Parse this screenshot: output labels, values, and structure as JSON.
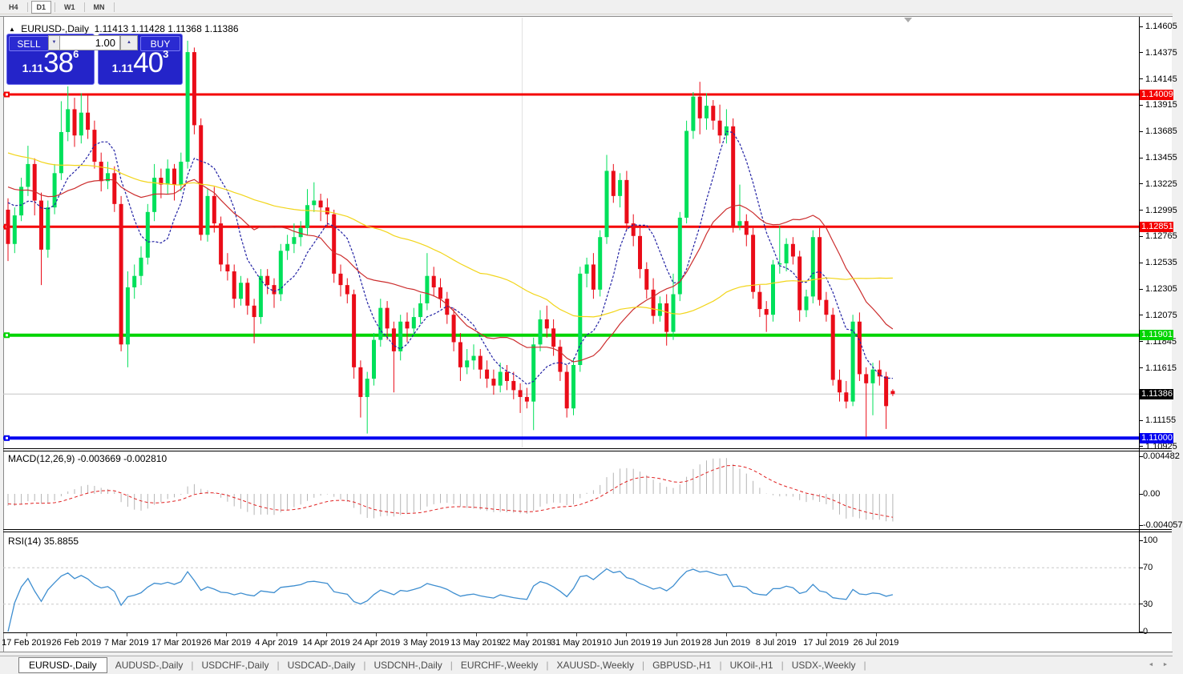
{
  "toolbar": {
    "timeframes": [
      "H4",
      "D1",
      "W1",
      "MN"
    ],
    "active": "D1"
  },
  "chart_title": {
    "symbol": "EURUSD-,Daily",
    "ohlc": "1.11413 1.11428 1.11368 1.11386"
  },
  "trade_panel": {
    "sell_label": "SELL",
    "buy_label": "BUY",
    "volume": "1.00",
    "sell_price": {
      "prefix": "1.11",
      "big": "38",
      "sup": "6"
    },
    "buy_price": {
      "prefix": "1.11",
      "big": "40",
      "sup": "3"
    }
  },
  "price_axis": {
    "labels": [
      "1.14605",
      "1.14375",
      "1.14145",
      "1.13915",
      "1.13685",
      "1.13455",
      "1.13225",
      "1.12995",
      "1.12765",
      "1.12535",
      "1.12305",
      "1.12075",
      "1.11845",
      "1.11615",
      "1.11155",
      "1.10925"
    ],
    "tags": [
      {
        "text": "1.14009",
        "price": 1.14009,
        "bg": "#f40000",
        "fg": "#ffffff"
      },
      {
        "text": "1.12851",
        "price": 1.12851,
        "bg": "#f40000",
        "fg": "#ffffff"
      },
      {
        "text": "1.11901",
        "price": 1.11901,
        "bg": "#00d400",
        "fg": "#ffffff"
      },
      {
        "text": "1.11386",
        "price": 1.11386,
        "bg": "#000000",
        "fg": "#ffffff"
      },
      {
        "text": "1.11000",
        "price": 1.11,
        "bg": "#0000f0",
        "fg": "#ffffff"
      }
    ]
  },
  "macd_panel": {
    "label": "MACD(12,26,9) -0.003669 -0.002810",
    "axis": [
      "0.004482",
      "0.00",
      "-0.004057"
    ]
  },
  "rsi_panel": {
    "label": "RSI(14) 35.8855",
    "axis": [
      "100",
      "70",
      "30",
      "0"
    ]
  },
  "date_axis": [
    "17 Feb 2019",
    "26 Feb 2019",
    "7 Mar 2019",
    "17 Mar 2019",
    "26 Mar 2019",
    "4 Apr 2019",
    "14 Apr 2019",
    "24 Apr 2019",
    "3 May 2019",
    "13 May 2019",
    "22 May 2019",
    "31 May 2019",
    "10 Jun 2019",
    "19 Jun 2019",
    "28 Jun 2019",
    "8 Jul 2019",
    "17 Jul 2019",
    "26 Jul 2019"
  ],
  "tabs": {
    "active": "EURUSD-,Daily",
    "items": [
      "EURUSD-,Daily",
      "AUDUSD-,Daily",
      "USDCHF-,Daily",
      "USDCAD-,Daily",
      "USDCNH-,Daily",
      "EURCHF-,Weekly",
      "XAUUSD-,Weekly",
      "GBPUSD-,H1",
      "UKOil-,H1",
      "USDX-,Weekly"
    ],
    "scroll_left": "◄",
    "scroll_right": "►"
  },
  "chart_data": {
    "type": "candlestick",
    "symbol": "EURUSD-",
    "timeframe": "Daily",
    "title": "EURUSD-,Daily",
    "last_ohlc": {
      "open": 1.11413,
      "high": 1.11428,
      "low": 1.11368,
      "close": 1.11386
    },
    "current_price": 1.11386,
    "y_axis_range": [
      1.10925,
      1.14605
    ],
    "horizontal_levels": [
      {
        "price": 1.14009,
        "color": "#f40000",
        "width": 3
      },
      {
        "price": 1.12851,
        "color": "#f40000",
        "width": 3
      },
      {
        "price": 1.11901,
        "color": "#00d400",
        "width": 4
      },
      {
        "price": 1.11,
        "color": "#0000f0",
        "width": 4
      }
    ],
    "moving_averages": [
      {
        "name": "fast",
        "window": 8,
        "color": "#2222a4",
        "style": "dashed"
      },
      {
        "name": "medium",
        "window": 21,
        "color": "#cc2e2e",
        "style": "solid"
      },
      {
        "name": "slow",
        "window": 55,
        "color": "#f2d51a",
        "style": "solid"
      }
    ],
    "indicators": {
      "macd": {
        "label": "MACD(12,26,9)",
        "value": -0.003669,
        "signal_value": -0.00281,
        "axis_max": 0.004482,
        "axis_min": -0.004057
      },
      "rsi": {
        "label": "RSI(14)",
        "value": 35.8855,
        "levels": [
          70,
          30
        ]
      }
    },
    "colors": {
      "bull": "#00e05a",
      "bear": "#ea0c18",
      "histogram": "#b5b5b5",
      "signal": "#e02020",
      "rsi_line": "#3e8ed0",
      "current_price_line": "#c6c6c6"
    },
    "candles": [
      [
        1.13,
        1.131,
        1.1255,
        1.127
      ],
      [
        1.127,
        1.1302,
        1.1262,
        1.1295
      ],
      [
        1.1295,
        1.1328,
        1.129,
        1.132
      ],
      [
        1.132,
        1.1356,
        1.1312,
        1.134
      ],
      [
        1.134,
        1.1345,
        1.1295,
        1.1308
      ],
      [
        1.1308,
        1.1315,
        1.1234,
        1.1265
      ],
      [
        1.1265,
        1.1308,
        1.1258,
        1.1302
      ],
      [
        1.1302,
        1.134,
        1.1296,
        1.1332
      ],
      [
        1.1332,
        1.1395,
        1.1326,
        1.1368
      ],
      [
        1.1368,
        1.1408,
        1.136,
        1.1388
      ],
      [
        1.1388,
        1.1398,
        1.1355,
        1.1365
      ],
      [
        1.1365,
        1.1402,
        1.1358,
        1.1385
      ],
      [
        1.1385,
        1.14,
        1.1362,
        1.137
      ],
      [
        1.137,
        1.1378,
        1.1336,
        1.1342
      ],
      [
        1.1342,
        1.135,
        1.1316,
        1.1325
      ],
      [
        1.1325,
        1.1342,
        1.1318,
        1.1332
      ],
      [
        1.1332,
        1.1338,
        1.1298,
        1.1305
      ],
      [
        1.1305,
        1.1312,
        1.1176,
        1.1182
      ],
      [
        1.1182,
        1.1246,
        1.1162,
        1.1232
      ],
      [
        1.1232,
        1.1252,
        1.1222,
        1.1242
      ],
      [
        1.1242,
        1.1268,
        1.1234,
        1.1258
      ],
      [
        1.1258,
        1.1305,
        1.1252,
        1.1298
      ],
      [
        1.1298,
        1.134,
        1.129,
        1.1328
      ],
      [
        1.1328,
        1.1336,
        1.131,
        1.1322
      ],
      [
        1.1322,
        1.1344,
        1.1314,
        1.1336
      ],
      [
        1.1336,
        1.134,
        1.1308,
        1.1322
      ],
      [
        1.1322,
        1.135,
        1.1316,
        1.1342
      ],
      [
        1.1342,
        1.1448,
        1.1336,
        1.1438
      ],
      [
        1.1438,
        1.1442,
        1.1366,
        1.1374
      ],
      [
        1.1374,
        1.138,
        1.1273,
        1.1278
      ],
      [
        1.1278,
        1.1318,
        1.1272,
        1.1312
      ],
      [
        1.1312,
        1.132,
        1.128,
        1.1288
      ],
      [
        1.1288,
        1.1294,
        1.1246,
        1.1252
      ],
      [
        1.1252,
        1.1262,
        1.1238,
        1.1246
      ],
      [
        1.1246,
        1.1252,
        1.1214,
        1.1222
      ],
      [
        1.1222,
        1.1242,
        1.1216,
        1.1236
      ],
      [
        1.1236,
        1.124,
        1.1208,
        1.1216
      ],
      [
        1.1216,
        1.1222,
        1.1183,
        1.1206
      ],
      [
        1.1206,
        1.1248,
        1.12,
        1.1242
      ],
      [
        1.1242,
        1.1248,
        1.1226,
        1.1234
      ],
      [
        1.1234,
        1.124,
        1.1214,
        1.1226
      ],
      [
        1.1226,
        1.127,
        1.122,
        1.1264
      ],
      [
        1.1264,
        1.1278,
        1.1256,
        1.127
      ],
      [
        1.127,
        1.1288,
        1.1262,
        1.1276
      ],
      [
        1.1276,
        1.129,
        1.1268,
        1.1284
      ],
      [
        1.1284,
        1.1318,
        1.1278,
        1.1304
      ],
      [
        1.1304,
        1.1324,
        1.1298,
        1.1308
      ],
      [
        1.1308,
        1.1314,
        1.129,
        1.1302
      ],
      [
        1.1302,
        1.131,
        1.1286,
        1.1296
      ],
      [
        1.1296,
        1.13,
        1.1236,
        1.1244
      ],
      [
        1.1244,
        1.1252,
        1.1224,
        1.1234
      ],
      [
        1.1234,
        1.124,
        1.1218,
        1.1226
      ],
      [
        1.1226,
        1.123,
        1.1152,
        1.1162
      ],
      [
        1.1162,
        1.1168,
        1.1118,
        1.1136
      ],
      [
        1.1136,
        1.1158,
        1.1104,
        1.1152
      ],
      [
        1.1152,
        1.1192,
        1.1146,
        1.1186
      ],
      [
        1.1186,
        1.1222,
        1.118,
        1.1214
      ],
      [
        1.1214,
        1.122,
        1.1186,
        1.1196
      ],
      [
        1.1196,
        1.1202,
        1.114,
        1.1176
      ],
      [
        1.1176,
        1.1208,
        1.1168,
        1.1202
      ],
      [
        1.1202,
        1.121,
        1.1184,
        1.1196
      ],
      [
        1.1196,
        1.1214,
        1.119,
        1.1206
      ],
      [
        1.1206,
        1.1226,
        1.12,
        1.1218
      ],
      [
        1.1218,
        1.1262,
        1.1212,
        1.1242
      ],
      [
        1.1242,
        1.125,
        1.1224,
        1.1232
      ],
      [
        1.1232,
        1.124,
        1.1214,
        1.1222
      ],
      [
        1.1222,
        1.1228,
        1.12,
        1.1208
      ],
      [
        1.1208,
        1.1214,
        1.1176,
        1.1184
      ],
      [
        1.1184,
        1.1192,
        1.115,
        1.1162
      ],
      [
        1.1162,
        1.1178,
        1.1156,
        1.1168
      ],
      [
        1.1168,
        1.1182,
        1.116,
        1.1172
      ],
      [
        1.1172,
        1.1178,
        1.1152,
        1.116
      ],
      [
        1.116,
        1.1168,
        1.1144,
        1.1152
      ],
      [
        1.1152,
        1.116,
        1.1138,
        1.1146
      ],
      [
        1.1146,
        1.1166,
        1.114,
        1.1158
      ],
      [
        1.1158,
        1.1164,
        1.1142,
        1.115
      ],
      [
        1.115,
        1.1158,
        1.1134,
        1.1142
      ],
      [
        1.1142,
        1.1148,
        1.1122,
        1.1136
      ],
      [
        1.1136,
        1.1144,
        1.1126,
        1.1132
      ],
      [
        1.1132,
        1.1188,
        1.1107,
        1.1182
      ],
      [
        1.1182,
        1.1212,
        1.1176,
        1.1204
      ],
      [
        1.1204,
        1.1216,
        1.1188,
        1.1196
      ],
      [
        1.1196,
        1.1204,
        1.1172,
        1.118
      ],
      [
        1.118,
        1.1186,
        1.115,
        1.1158
      ],
      [
        1.1158,
        1.1164,
        1.1118,
        1.1126
      ],
      [
        1.1126,
        1.117,
        1.112,
        1.1164
      ],
      [
        1.1164,
        1.125,
        1.1158,
        1.1244
      ],
      [
        1.1244,
        1.1258,
        1.1232,
        1.1252
      ],
      [
        1.1252,
        1.1262,
        1.1222,
        1.123
      ],
      [
        1.123,
        1.1282,
        1.1224,
        1.1276
      ],
      [
        1.1276,
        1.1348,
        1.127,
        1.1334
      ],
      [
        1.1334,
        1.134,
        1.1306,
        1.1312
      ],
      [
        1.1312,
        1.1332,
        1.1302,
        1.1326
      ],
      [
        1.1326,
        1.1334,
        1.1282,
        1.1288
      ],
      [
        1.1288,
        1.1296,
        1.1268,
        1.1277
      ],
      [
        1.1277,
        1.1284,
        1.124,
        1.1248
      ],
      [
        1.1248,
        1.1254,
        1.1222,
        1.123
      ],
      [
        1.123,
        1.124,
        1.12,
        1.1207
      ],
      [
        1.1207,
        1.1224,
        1.1202,
        1.1218
      ],
      [
        1.1218,
        1.1226,
        1.1181,
        1.1193
      ],
      [
        1.1193,
        1.1244,
        1.1186,
        1.1226
      ],
      [
        1.1226,
        1.1298,
        1.122,
        1.1293
      ],
      [
        1.1293,
        1.1378,
        1.1288,
        1.1369
      ],
      [
        1.1369,
        1.1403,
        1.1362,
        1.1399
      ],
      [
        1.1399,
        1.1412,
        1.1366,
        1.138
      ],
      [
        1.138,
        1.1402,
        1.137,
        1.1391
      ],
      [
        1.1391,
        1.1396,
        1.137,
        1.1378
      ],
      [
        1.1378,
        1.1392,
        1.1358,
        1.1365
      ],
      [
        1.1365,
        1.1388,
        1.1358,
        1.1373
      ],
      [
        1.1373,
        1.138,
        1.128,
        1.1286
      ],
      [
        1.1286,
        1.1322,
        1.1282,
        1.129
      ],
      [
        1.129,
        1.1296,
        1.1268,
        1.1278
      ],
      [
        1.1278,
        1.1284,
        1.1222,
        1.1228
      ],
      [
        1.1228,
        1.1234,
        1.1206,
        1.1213
      ],
      [
        1.1213,
        1.122,
        1.1193,
        1.1208
      ],
      [
        1.1208,
        1.1256,
        1.1202,
        1.1252
      ],
      [
        1.1252,
        1.1286,
        1.1244,
        1.1253
      ],
      [
        1.1253,
        1.1275,
        1.1246,
        1.127
      ],
      [
        1.127,
        1.1276,
        1.1252,
        1.1259
      ],
      [
        1.1259,
        1.1264,
        1.1202,
        1.1212
      ],
      [
        1.1212,
        1.123,
        1.1206,
        1.1224
      ],
      [
        1.1224,
        1.1282,
        1.1218,
        1.1276
      ],
      [
        1.1276,
        1.1284,
        1.1216,
        1.1221
      ],
      [
        1.1221,
        1.1228,
        1.1202,
        1.1208
      ],
      [
        1.1208,
        1.1214,
        1.1146,
        1.1151
      ],
      [
        1.1151,
        1.116,
        1.1132,
        1.114
      ],
      [
        1.114,
        1.115,
        1.1126,
        1.1132
      ],
      [
        1.1132,
        1.1208,
        1.1128,
        1.1202
      ],
      [
        1.1202,
        1.121,
        1.115,
        1.1156
      ],
      [
        1.1156,
        1.1162,
        1.1101,
        1.1148
      ],
      [
        1.1148,
        1.1166,
        1.112,
        1.116
      ],
      [
        1.116,
        1.1168,
        1.1146,
        1.1154
      ],
      [
        1.1154,
        1.1158,
        1.1108,
        1.1128
      ],
      [
        1.11413,
        1.11428,
        1.11368,
        1.11386
      ]
    ]
  }
}
